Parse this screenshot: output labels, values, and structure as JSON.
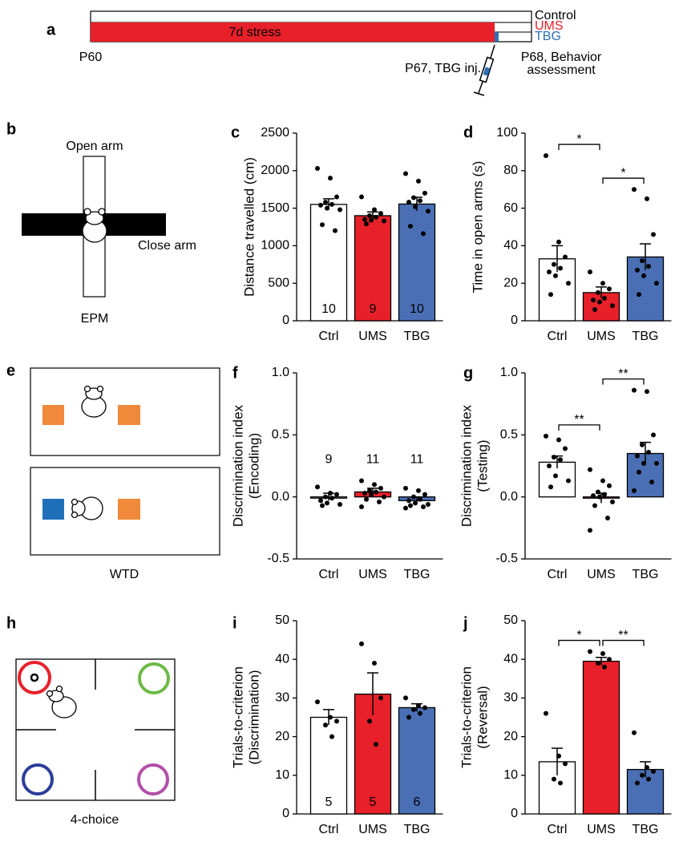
{
  "panel_labels": [
    "a",
    "b",
    "c",
    "d",
    "e",
    "f",
    "g",
    "h",
    "i",
    "j"
  ],
  "timeline": {
    "groups": [
      "Control",
      "UMS",
      "TBG"
    ],
    "stress_label": "7d stress",
    "start": "P60",
    "injection": "P67, TBG inj.",
    "assessment": [
      "P68, Behavior",
      "assessment"
    ]
  },
  "diagrams": {
    "epm": {
      "open_arm": "Open arm",
      "close_arm": "Close arm",
      "name": "EPM"
    },
    "wtd": {
      "name": "WTD"
    },
    "four_choice": {
      "name": "4-choice"
    }
  },
  "chart_data": [
    {
      "type": "bar",
      "ylabel": [
        "Distance travelled (cm)"
      ],
      "categories": [
        "Ctrl",
        "UMS",
        "TBG"
      ],
      "colors": [
        "#ffffff",
        "#e8202a",
        "#4a6fb5"
      ],
      "values": [
        1550,
        1400,
        1555
      ],
      "errors": [
        75,
        50,
        90
      ],
      "n_labels": [
        10,
        9,
        10
      ],
      "points": [
        [
          2030,
          1900,
          1650,
          1580,
          1550,
          1540,
          1500,
          1480,
          1280,
          1200
        ],
        [
          1650,
          1480,
          1430,
          1400,
          1380,
          1350,
          1340,
          1330,
          1290
        ],
        [
          1960,
          1860,
          1700,
          1640,
          1600,
          1580,
          1520,
          1460,
          1260,
          1160
        ]
      ],
      "ylim": [
        0,
        2500
      ],
      "yticks": [
        0,
        500,
        1000,
        1500,
        2000,
        2500
      ],
      "significance": []
    },
    {
      "type": "bar",
      "ylabel": [
        "Time in open arms (s)"
      ],
      "categories": [
        "Ctrl",
        "UMS",
        "TBG"
      ],
      "colors": [
        "#ffffff",
        "#e8202a",
        "#4a6fb5"
      ],
      "values": [
        33,
        15,
        34
      ],
      "errors": [
        7,
        3,
        7
      ],
      "points": [
        [
          88,
          42,
          34,
          30,
          28,
          26,
          24,
          20,
          14
        ],
        [
          26,
          20,
          17,
          15,
          12,
          11,
          10,
          8,
          6
        ],
        [
          70,
          65,
          46,
          32,
          29,
          27,
          24,
          20,
          14
        ]
      ],
      "ylim": [
        0,
        100
      ],
      "yticks": [
        0,
        20,
        40,
        60,
        80,
        100
      ],
      "significance": [
        {
          "from": 0,
          "to": 1,
          "label": "*"
        },
        {
          "from": 1,
          "to": 2,
          "label": "*"
        }
      ]
    },
    {
      "type": "bar",
      "ylabel": [
        "Discrimination index",
        "(Encoding)"
      ],
      "categories": [
        "Ctrl",
        "UMS",
        "TBG"
      ],
      "colors": [
        "#ffffff",
        "#e8202a",
        "#4a6fb5"
      ],
      "values": [
        0.0,
        0.04,
        -0.03
      ],
      "errors": [
        0.03,
        0.03,
        0.03
      ],
      "n_labels": [
        9,
        11,
        11
      ],
      "points": [
        [
          0.08,
          0.03,
          0.02,
          0.0,
          -0.01,
          -0.03,
          -0.05,
          -0.06,
          -0.07
        ],
        [
          0.13,
          0.1,
          0.07,
          0.05,
          0.04,
          0.03,
          0.02,
          0.0,
          -0.02,
          -0.04,
          -0.08
        ],
        [
          0.07,
          0.05,
          0.02,
          0.0,
          -0.02,
          -0.03,
          -0.05,
          -0.06,
          -0.07,
          -0.08,
          -0.09
        ]
      ],
      "ylim": [
        -0.5,
        1
      ],
      "yticks": [
        -0.5,
        {
          "value": 0,
          "label": "0.0"
        },
        0.5,
        {
          "value": 1,
          "label": "1.0"
        }
      ],
      "significance": []
    },
    {
      "type": "bar",
      "ylabel": [
        "Discrimination index",
        "(Testing)"
      ],
      "categories": [
        "Ctrl",
        "UMS",
        "TBG"
      ],
      "colors": [
        "#ffffff",
        "#e8202a",
        "#4a6fb5"
      ],
      "values": [
        0.28,
        -0.01,
        0.35
      ],
      "errors": [
        0.05,
        0.04,
        0.09
      ],
      "points": [
        [
          0.49,
          0.46,
          0.39,
          0.32,
          0.3,
          0.25,
          0.17,
          0.13,
          0.08
        ],
        [
          0.22,
          0.13,
          0.09,
          0.04,
          0.02,
          0.01,
          0.0,
          -0.04,
          -0.07,
          -0.17,
          -0.27
        ],
        [
          0.86,
          0.85,
          0.5,
          0.42,
          0.36,
          0.33,
          0.27,
          0.27,
          0.2,
          0.12,
          0.05
        ]
      ],
      "ylim": [
        -0.5,
        1
      ],
      "yticks": [
        -0.5,
        {
          "value": 0,
          "label": "0.0"
        },
        0.5,
        {
          "value": 1,
          "label": "1.0"
        }
      ],
      "significance": [
        {
          "from": 0,
          "to": 1,
          "label": "**"
        },
        {
          "from": 1,
          "to": 2,
          "label": "**"
        }
      ]
    },
    {
      "type": "bar",
      "ylabel": [
        "Trials-to-criterion",
        "(Discrimination)"
      ],
      "categories": [
        "Ctrl",
        "UMS",
        "TBG"
      ],
      "colors": [
        "#ffffff",
        "#e8202a",
        "#4a6fb5"
      ],
      "values": [
        25,
        31,
        27.5
      ],
      "errors": [
        2,
        5.5,
        1
      ],
      "n_labels": [
        5,
        5,
        6
      ],
      "points": [
        [
          29,
          25,
          24,
          23,
          20
        ],
        [
          44,
          39,
          30,
          24,
          18
        ],
        [
          30,
          28,
          27.5,
          27,
          26,
          25
        ]
      ],
      "ylim": [
        0,
        50
      ],
      "yticks": [
        0,
        10,
        20,
        30,
        40,
        50
      ],
      "significance": []
    },
    {
      "type": "bar",
      "ylabel": [
        "Trials-to-criterion",
        "(Reversal)"
      ],
      "categories": [
        "Ctrl",
        "UMS",
        "TBG"
      ],
      "colors": [
        "#ffffff",
        "#e8202a",
        "#4a6fb5"
      ],
      "values": [
        13.5,
        39.5,
        11.5
      ],
      "errors": [
        3.5,
        1,
        2
      ],
      "points": [
        [
          26,
          15,
          13,
          9,
          8
        ],
        [
          42,
          41.5,
          40,
          39,
          38
        ],
        [
          21,
          12,
          11,
          10,
          9,
          8
        ]
      ],
      "ylim": [
        0,
        50
      ],
      "yticks": [
        0,
        10,
        20,
        30,
        40,
        50
      ],
      "significance": [
        {
          "from": 0,
          "to": 1,
          "label": "*"
        },
        {
          "from": 1,
          "to": 2,
          "label": "**"
        }
      ]
    }
  ]
}
